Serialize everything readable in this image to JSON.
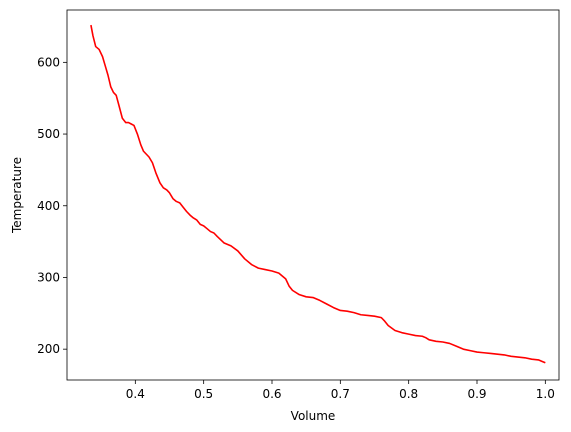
{
  "chart_data": {
    "type": "line",
    "title": "",
    "xlabel": "Volume",
    "ylabel": "Temperature",
    "xlim": [
      0.3,
      1.02
    ],
    "ylim": [
      157,
      673
    ],
    "x_ticks": [
      0.4,
      0.5,
      0.6,
      0.7,
      0.8,
      0.9,
      1.0
    ],
    "x_tick_labels": [
      "0.4",
      "0.5",
      "0.6",
      "0.7",
      "0.8",
      "0.9",
      "1.0"
    ],
    "y_ticks": [
      200,
      300,
      400,
      500,
      600
    ],
    "y_tick_labels": [
      "200",
      "300",
      "400",
      "500",
      "600"
    ],
    "grid": false,
    "legend": "none",
    "series": [
      {
        "color": "#ff0000",
        "x": [
          0.335,
          0.338,
          0.342,
          0.347,
          0.352,
          0.356,
          0.36,
          0.364,
          0.368,
          0.372,
          0.376,
          0.381,
          0.386,
          0.39,
          0.394,
          0.398,
          0.403,
          0.408,
          0.412,
          0.416,
          0.42,
          0.425,
          0.43,
          0.436,
          0.441,
          0.446,
          0.45,
          0.455,
          0.46,
          0.465,
          0.47,
          0.475,
          0.48,
          0.485,
          0.49,
          0.495,
          0.5,
          0.505,
          0.51,
          0.515,
          0.52,
          0.53,
          0.54,
          0.55,
          0.56,
          0.57,
          0.58,
          0.59,
          0.6,
          0.61,
          0.62,
          0.625,
          0.63,
          0.64,
          0.65,
          0.66,
          0.67,
          0.68,
          0.69,
          0.7,
          0.71,
          0.72,
          0.73,
          0.74,
          0.75,
          0.76,
          0.765,
          0.77,
          0.78,
          0.79,
          0.8,
          0.81,
          0.82,
          0.825,
          0.83,
          0.84,
          0.85,
          0.86,
          0.87,
          0.88,
          0.89,
          0.9,
          0.91,
          0.92,
          0.93,
          0.94,
          0.95,
          0.96,
          0.97,
          0.98,
          0.99,
          0.995,
          1.0
        ],
        "y": [
          652,
          637,
          622,
          618,
          608,
          595,
          582,
          566,
          558,
          554,
          540,
          522,
          516,
          516,
          514,
          512,
          500,
          485,
          476,
          472,
          468,
          460,
          446,
          432,
          425,
          422,
          418,
          410,
          406,
          404,
          398,
          392,
          387,
          383,
          380,
          374,
          372,
          368,
          364,
          362,
          357,
          348,
          344,
          337,
          326,
          318,
          313,
          311,
          309,
          306,
          298,
          288,
          282,
          276,
          273,
          272,
          268,
          263,
          258,
          254,
          253,
          251,
          248,
          247,
          246,
          244,
          239,
          233,
          226,
          223,
          221,
          219,
          218,
          216,
          213,
          211,
          210,
          208,
          204,
          200,
          198,
          196,
          195,
          194,
          193,
          192,
          190,
          189,
          188,
          186,
          185,
          183,
          181
        ]
      }
    ]
  }
}
